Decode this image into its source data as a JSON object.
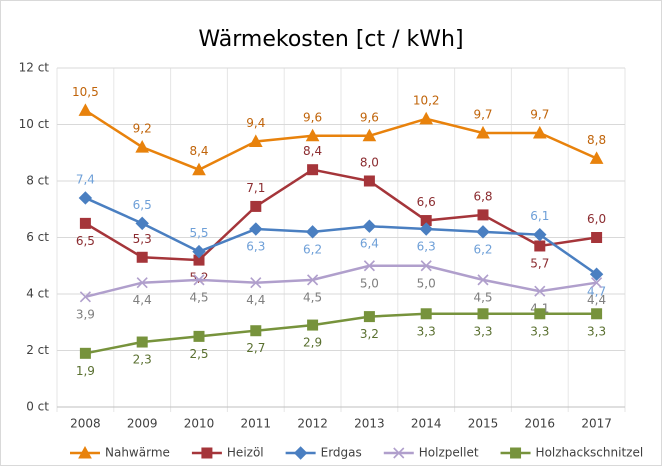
{
  "chart_data": {
    "type": "line",
    "title": "Wärmekosten [ct / kWh]",
    "categories": [
      "2008",
      "2009",
      "2010",
      "2011",
      "2012",
      "2013",
      "2014",
      "2015",
      "2016",
      "2017"
    ],
    "ylim": [
      0,
      12
    ],
    "yticks": [
      {
        "value": 0,
        "label": "0 ct"
      },
      {
        "value": 2,
        "label": "2 ct"
      },
      {
        "value": 4,
        "label": "4 ct"
      },
      {
        "value": 6,
        "label": "6 ct"
      },
      {
        "value": 8,
        "label": "8 ct"
      },
      {
        "value": 10,
        "label": "10 ct"
      },
      {
        "value": 12,
        "label": "12 ct"
      }
    ],
    "grid": true,
    "legend": "bottom",
    "series": [
      {
        "name": "Nahwärme",
        "color": "#e8820c",
        "marker": "triangle",
        "values": [
          10.5,
          9.2,
          8.4,
          9.4,
          9.6,
          9.6,
          10.2,
          9.7,
          9.7,
          8.8
        ],
        "value_labels": [
          "10,5",
          "9,2",
          "8,4",
          "9,4",
          "9,6",
          "9,6",
          "10,2",
          "9,7",
          "9,7",
          "8,8"
        ]
      },
      {
        "name": "Heizöl",
        "color": "#a5353a",
        "marker": "square",
        "values": [
          6.5,
          5.3,
          5.2,
          7.1,
          8.4,
          8.0,
          6.6,
          6.8,
          5.7,
          6.0
        ],
        "value_labels": [
          "6,5",
          "5,3",
          "5,2",
          "7,1",
          "8,4",
          "8,0",
          "6,6",
          "6,8",
          "5,7",
          "6,0"
        ]
      },
      {
        "name": "Erdgas",
        "color": "#4a7fc1",
        "marker": "diamond",
        "values": [
          7.4,
          6.5,
          5.5,
          6.3,
          6.2,
          6.4,
          6.3,
          6.2,
          6.1,
          4.7
        ],
        "value_labels": [
          "7,4",
          "6,5",
          "5,5",
          "6,3",
          "6,2",
          "6,4",
          "6,3",
          "6,2",
          "6,1",
          "4,7"
        ]
      },
      {
        "name": "Holzpellet",
        "color": "#b09fcc",
        "marker": "x",
        "values": [
          3.9,
          4.4,
          4.5,
          4.4,
          4.5,
          5.0,
          5.0,
          4.5,
          4.1,
          4.4
        ],
        "value_labels": [
          "3,9",
          "4,4",
          "4,5",
          "4,4",
          "4,5",
          "5,0",
          "5,0",
          "4,5",
          "4,1",
          "4,4"
        ]
      },
      {
        "name": "Holzhackschnitzel",
        "color": "#77933c",
        "marker": "square",
        "values": [
          1.9,
          2.3,
          2.5,
          2.7,
          2.9,
          3.2,
          3.3,
          3.3,
          3.3,
          3.3
        ],
        "value_labels": [
          "1,9",
          "2,3",
          "2,5",
          "2,7",
          "2,9",
          "3,2",
          "3,3",
          "3,3",
          "3,3",
          "3,3"
        ]
      }
    ]
  }
}
